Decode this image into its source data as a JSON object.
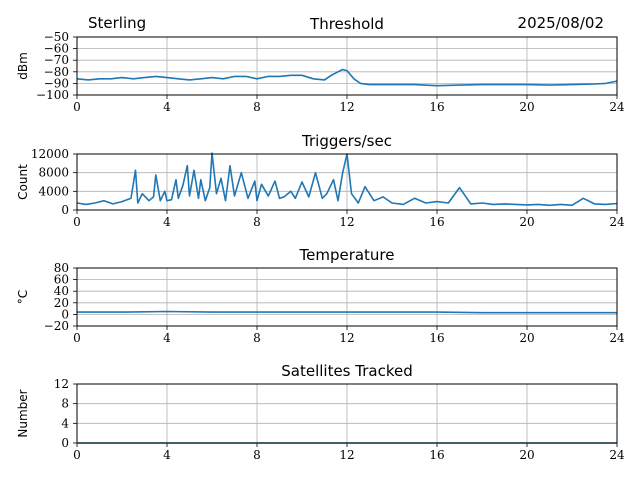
{
  "header": {
    "station": "Sterling",
    "date": "2025/08/02"
  },
  "colors": {
    "series": "#1f77b4",
    "grid": "#b0b0b0",
    "axis": "#000000"
  },
  "chart_data": [
    {
      "type": "line",
      "title": "Threshold",
      "xlabel": "",
      "ylabel": "dBm",
      "xlim": [
        0,
        24
      ],
      "ylim": [
        -100,
        -50
      ],
      "xticks": [
        "0",
        "4",
        "8",
        "12",
        "16",
        "20",
        "24"
      ],
      "yticks": [
        "−100",
        "−90",
        "−80",
        "−70",
        "−60",
        "−50"
      ],
      "grid": true,
      "series": [
        {
          "x": [
            0,
            0.5,
            1,
            1.5,
            2,
            2.5,
            3,
            3.5,
            4,
            4.5,
            5,
            5.5,
            6,
            6.5,
            7,
            7.5,
            8,
            8.5,
            9,
            9.5,
            10,
            10.5,
            11,
            11.3,
            11.6,
            11.8,
            12,
            12.3,
            12.6,
            13,
            14,
            15,
            16,
            17,
            18,
            19,
            20,
            21,
            22,
            23,
            23.5,
            24
          ],
          "y": [
            -86,
            -87,
            -86,
            -86,
            -85,
            -86,
            -85,
            -84,
            -85,
            -86,
            -87,
            -86,
            -85,
            -86,
            -84,
            -84,
            -86,
            -84,
            -84,
            -83,
            -83,
            -86,
            -87,
            -83,
            -80,
            -78,
            -79,
            -86,
            -90,
            -91,
            -91,
            -91,
            -92,
            -91.5,
            -91,
            -91,
            -91,
            -91.5,
            -91,
            -90.5,
            -90,
            -88
          ]
        }
      ]
    },
    {
      "type": "line",
      "title": "Triggers/sec",
      "xlabel": "",
      "ylabel": "Count",
      "xlim": [
        0,
        24
      ],
      "ylim": [
        0,
        12000
      ],
      "xticks": [
        "0",
        "4",
        "8",
        "12",
        "16",
        "20",
        "24"
      ],
      "yticks": [
        "0",
        "4000",
        "8000",
        "12000"
      ],
      "grid": true,
      "series": [
        {
          "x": [
            0,
            0.4,
            0.8,
            1.2,
            1.6,
            2.0,
            2.4,
            2.6,
            2.7,
            2.9,
            3.2,
            3.4,
            3.5,
            3.7,
            3.9,
            4.0,
            4.2,
            4.4,
            4.5,
            4.7,
            4.9,
            5.0,
            5.2,
            5.4,
            5.5,
            5.7,
            5.9,
            6.0,
            6.2,
            6.4,
            6.6,
            6.8,
            7.0,
            7.3,
            7.6,
            7.9,
            8.0,
            8.2,
            8.5,
            8.8,
            9.0,
            9.2,
            9.5,
            9.7,
            10.0,
            10.3,
            10.6,
            10.9,
            11.1,
            11.4,
            11.6,
            11.8,
            12.0,
            12.2,
            12.5,
            12.8,
            13.2,
            13.6,
            14.0,
            14.5,
            15.0,
            15.5,
            16.0,
            16.5,
            17.0,
            17.5,
            18.0,
            18.5,
            19.0,
            19.5,
            20.0,
            20.5,
            21.0,
            21.5,
            22.0,
            22.5,
            23.0,
            23.5,
            24.0
          ],
          "y": [
            1500,
            1200,
            1500,
            2000,
            1300,
            1800,
            2500,
            8500,
            1500,
            3500,
            2000,
            2800,
            7500,
            2000,
            4000,
            2000,
            2200,
            6500,
            2500,
            5200,
            9500,
            3000,
            8500,
            2500,
            6500,
            2000,
            4800,
            12200,
            3500,
            6800,
            2000,
            9500,
            3000,
            8000,
            2500,
            6200,
            2000,
            5500,
            3000,
            6200,
            2500,
            2800,
            4000,
            2500,
            6000,
            2800,
            8000,
            2500,
            3500,
            6500,
            2000,
            7800,
            12000,
            3500,
            1500,
            5000,
            2000,
            2800,
            1500,
            1200,
            2500,
            1500,
            1800,
            1500,
            4800,
            1300,
            1500,
            1200,
            1300,
            1200,
            1100,
            1200,
            1000,
            1200,
            1000,
            2500,
            1300,
            1200,
            1400
          ]
        }
      ]
    },
    {
      "type": "line",
      "title": "Temperature",
      "xlabel": "",
      "ylabel": "°C",
      "xlim": [
        0,
        24
      ],
      "ylim": [
        -20,
        80
      ],
      "xticks": [
        "0",
        "4",
        "8",
        "12",
        "16",
        "20",
        "24"
      ],
      "yticks": [
        "−20",
        "0",
        "20",
        "40",
        "60",
        "80"
      ],
      "grid": true,
      "series": [
        {
          "x": [
            0,
            2,
            4,
            6,
            8,
            10,
            12,
            14,
            16,
            18,
            20,
            22,
            24
          ],
          "y": [
            4,
            4,
            5,
            4,
            4,
            4,
            4,
            4,
            4,
            3,
            3,
            3,
            3
          ]
        }
      ]
    },
    {
      "type": "line",
      "title": "Satellites Tracked",
      "xlabel": "",
      "ylabel": "Number",
      "xlim": [
        0,
        24
      ],
      "ylim": [
        0,
        12
      ],
      "xticks": [
        "0",
        "4",
        "8",
        "12",
        "16",
        "20",
        "24"
      ],
      "yticks": [
        "0",
        "4",
        "8",
        "12"
      ],
      "grid": true,
      "series": [
        {
          "x": [
            0,
            24
          ],
          "y": [
            0,
            0
          ]
        }
      ]
    }
  ]
}
